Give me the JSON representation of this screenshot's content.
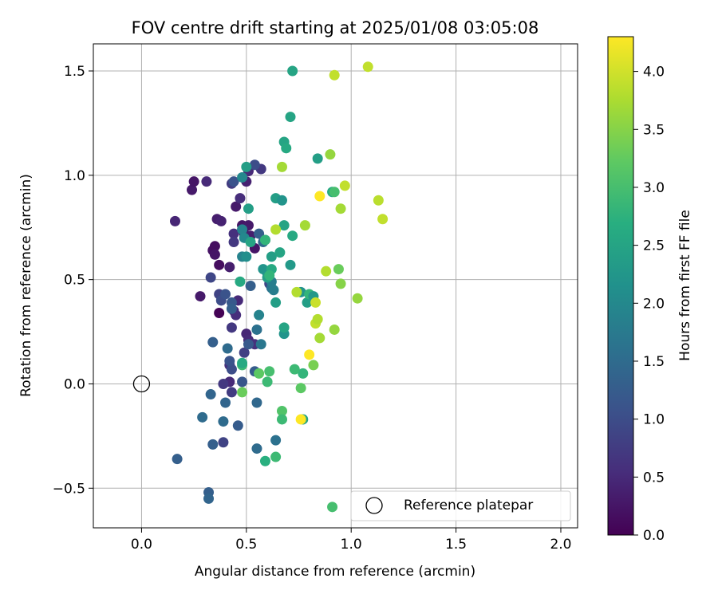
{
  "chart_data": {
    "type": "scatter",
    "title": "FOV centre drift starting at 2025/01/08 03:05:08",
    "xlabel": "Angular distance from reference (arcmin)",
    "ylabel": "Rotation from reference (arcmin)",
    "xlim": [
      -0.23,
      2.08
    ],
    "ylim": [
      -0.69,
      1.63
    ],
    "xticks": [
      0.0,
      0.5,
      1.0,
      1.5,
      2.0
    ],
    "xtick_labels": [
      "0.0",
      "0.5",
      "1.0",
      "1.5",
      "2.0"
    ],
    "yticks": [
      -0.5,
      0.0,
      0.5,
      1.0,
      1.5
    ],
    "ytick_labels": [
      "−0.5",
      "0.0",
      "0.5",
      "1.0",
      "1.5"
    ],
    "grid": true,
    "legend": {
      "position": "lower-right",
      "entries": [
        "Reference platepar"
      ]
    },
    "reference": {
      "x": 0.0,
      "y": 0.0,
      "label": "Reference platepar"
    },
    "colorbar": {
      "label": "Hours from first FF file",
      "min": 0.0,
      "max": 4.3,
      "colormap": "viridis",
      "ticks": [
        0.0,
        0.5,
        1.0,
        1.5,
        2.0,
        2.5,
        3.0,
        3.5,
        4.0
      ],
      "tick_labels": [
        "0.0",
        "0.5",
        "1.0",
        "1.5",
        "2.0",
        "2.5",
        "3.0",
        "3.5",
        "4.0"
      ]
    },
    "points": [
      {
        "x": 0.37,
        "y": 0.34,
        "h": 0.02
      },
      {
        "x": 0.37,
        "y": 0.57,
        "h": 0.15
      },
      {
        "x": 0.34,
        "y": 0.64,
        "h": 0.2
      },
      {
        "x": 0.35,
        "y": 0.66,
        "h": 0.15
      },
      {
        "x": 0.35,
        "y": 0.62,
        "h": 0.25
      },
      {
        "x": 0.28,
        "y": 0.42,
        "h": 0.3
      },
      {
        "x": 0.24,
        "y": 0.93,
        "h": 0.3
      },
      {
        "x": 0.25,
        "y": 0.97,
        "h": 0.25
      },
      {
        "x": 0.16,
        "y": 0.78,
        "h": 0.45
      },
      {
        "x": 0.31,
        "y": 0.97,
        "h": 0.5
      },
      {
        "x": 0.36,
        "y": 0.79,
        "h": 0.35
      },
      {
        "x": 0.38,
        "y": 0.78,
        "h": 0.4
      },
      {
        "x": 0.42,
        "y": 0.56,
        "h": 0.35
      },
      {
        "x": 0.45,
        "y": 0.85,
        "h": 0.3
      },
      {
        "x": 0.48,
        "y": 0.76,
        "h": 0.25
      },
      {
        "x": 0.49,
        "y": 0.72,
        "h": 0.2
      },
      {
        "x": 0.51,
        "y": 0.76,
        "h": 0.3
      },
      {
        "x": 0.52,
        "y": 0.71,
        "h": 0.35
      },
      {
        "x": 0.54,
        "y": 0.65,
        "h": 0.25
      },
      {
        "x": 0.5,
        "y": 0.97,
        "h": 0.4
      },
      {
        "x": 0.47,
        "y": 0.89,
        "h": 0.55
      },
      {
        "x": 0.43,
        "y": 0.96,
        "h": 0.75
      },
      {
        "x": 0.51,
        "y": 1.02,
        "h": 0.5
      },
      {
        "x": 0.57,
        "y": 1.03,
        "h": 0.7
      },
      {
        "x": 0.44,
        "y": 0.72,
        "h": 0.6
      },
      {
        "x": 0.44,
        "y": 0.68,
        "h": 0.7
      },
      {
        "x": 0.46,
        "y": 0.4,
        "h": 0.5
      },
      {
        "x": 0.44,
        "y": 0.35,
        "h": 0.45
      },
      {
        "x": 0.45,
        "y": 0.33,
        "h": 0.55
      },
      {
        "x": 0.43,
        "y": 0.27,
        "h": 0.7
      },
      {
        "x": 0.5,
        "y": 0.24,
        "h": 0.45
      },
      {
        "x": 0.51,
        "y": 0.21,
        "h": 0.5
      },
      {
        "x": 0.49,
        "y": 0.15,
        "h": 0.8
      },
      {
        "x": 0.54,
        "y": 0.19,
        "h": 0.6
      },
      {
        "x": 0.42,
        "y": 0.09,
        "h": 0.6
      },
      {
        "x": 0.42,
        "y": 0.01,
        "h": 0.5
      },
      {
        "x": 0.39,
        "y": 0.0,
        "h": 0.7
      },
      {
        "x": 0.43,
        "y": -0.04,
        "h": 0.75
      },
      {
        "x": 0.39,
        "y": -0.28,
        "h": 0.85
      },
      {
        "x": 0.43,
        "y": 0.07,
        "h": 1.0
      },
      {
        "x": 0.42,
        "y": 0.11,
        "h": 1.1
      },
      {
        "x": 0.48,
        "y": 0.01,
        "h": 1.15
      },
      {
        "x": 0.46,
        "y": -0.2,
        "h": 1.25
      },
      {
        "x": 0.4,
        "y": -0.09,
        "h": 1.4
      },
      {
        "x": 0.33,
        "y": 0.51,
        "h": 0.9
      },
      {
        "x": 0.37,
        "y": 0.43,
        "h": 0.85
      },
      {
        "x": 0.38,
        "y": 0.4,
        "h": 1.0
      },
      {
        "x": 0.4,
        "y": 0.43,
        "h": 1.1
      },
      {
        "x": 0.43,
        "y": 0.39,
        "h": 1.2
      },
      {
        "x": 0.43,
        "y": 0.36,
        "h": 1.3
      },
      {
        "x": 0.41,
        "y": 0.17,
        "h": 1.5
      },
      {
        "x": 0.34,
        "y": 0.2,
        "h": 1.3
      },
      {
        "x": 0.33,
        "y": -0.05,
        "h": 1.4
      },
      {
        "x": 0.39,
        "y": -0.18,
        "h": 1.5
      },
      {
        "x": 0.29,
        "y": -0.16,
        "h": 1.5
      },
      {
        "x": 0.34,
        "y": -0.29,
        "h": 1.3
      },
      {
        "x": 0.32,
        "y": -0.52,
        "h": 1.3
      },
      {
        "x": 0.32,
        "y": -0.55,
        "h": 1.4
      },
      {
        "x": 0.17,
        "y": -0.36,
        "h": 1.3
      },
      {
        "x": 0.55,
        "y": -0.31,
        "h": 1.5
      },
      {
        "x": 0.64,
        "y": -0.27,
        "h": 1.6
      },
      {
        "x": 0.55,
        "y": -0.09,
        "h": 1.45
      },
      {
        "x": 0.54,
        "y": 0.06,
        "h": 1.25
      },
      {
        "x": 0.52,
        "y": 0.47,
        "h": 1.3
      },
      {
        "x": 0.51,
        "y": 0.19,
        "h": 1.2
      },
      {
        "x": 0.55,
        "y": 0.26,
        "h": 1.6
      },
      {
        "x": 0.57,
        "y": 0.19,
        "h": 1.7
      },
      {
        "x": 0.56,
        "y": 0.33,
        "h": 1.9
      },
      {
        "x": 0.54,
        "y": 1.05,
        "h": 1.0
      },
      {
        "x": 0.44,
        "y": 0.97,
        "h": 1.1
      },
      {
        "x": 0.48,
        "y": 0.99,
        "h": 2.0
      },
      {
        "x": 0.5,
        "y": 1.04,
        "h": 2.4
      },
      {
        "x": 0.51,
        "y": 0.84,
        "h": 2.4
      },
      {
        "x": 0.48,
        "y": 0.74,
        "h": 1.9
      },
      {
        "x": 0.49,
        "y": 0.7,
        "h": 2.0
      },
      {
        "x": 0.56,
        "y": 0.72,
        "h": 1.3
      },
      {
        "x": 0.59,
        "y": 0.69,
        "h": 1.2
      },
      {
        "x": 0.58,
        "y": 0.68,
        "h": 1.5
      },
      {
        "x": 0.52,
        "y": 0.68,
        "h": 2.5
      },
      {
        "x": 0.48,
        "y": 0.61,
        "h": 1.9
      },
      {
        "x": 0.5,
        "y": 0.61,
        "h": 2.1
      },
      {
        "x": 0.61,
        "y": 0.48,
        "h": 0.9
      },
      {
        "x": 0.62,
        "y": 0.46,
        "h": 1.6
      },
      {
        "x": 0.62,
        "y": 0.49,
        "h": 1.8
      },
      {
        "x": 0.63,
        "y": 0.45,
        "h": 1.8
      },
      {
        "x": 0.6,
        "y": 0.53,
        "h": 2.0
      },
      {
        "x": 0.58,
        "y": 0.55,
        "h": 2.2
      },
      {
        "x": 0.6,
        "y": 0.51,
        "h": 2.4
      },
      {
        "x": 0.62,
        "y": 0.55,
        "h": 2.6
      },
      {
        "x": 0.61,
        "y": 0.52,
        "h": 2.8
      },
      {
        "x": 0.64,
        "y": 0.89,
        "h": 2.4
      },
      {
        "x": 0.67,
        "y": 0.88,
        "h": 2.2
      },
      {
        "x": 0.62,
        "y": 0.61,
        "h": 2.4
      },
      {
        "x": 0.66,
        "y": 0.63,
        "h": 2.5
      },
      {
        "x": 0.68,
        "y": 0.76,
        "h": 2.5
      },
      {
        "x": 0.72,
        "y": 0.71,
        "h": 2.6
      },
      {
        "x": 0.71,
        "y": 0.57,
        "h": 2.3
      },
      {
        "x": 0.59,
        "y": 0.69,
        "h": 2.8
      },
      {
        "x": 0.64,
        "y": 0.39,
        "h": 2.4
      },
      {
        "x": 0.68,
        "y": 0.24,
        "h": 2.2
      },
      {
        "x": 0.68,
        "y": 0.27,
        "h": 2.5
      },
      {
        "x": 0.47,
        "y": 0.49,
        "h": 2.6
      },
      {
        "x": 0.68,
        "y": 1.16,
        "h": 2.5
      },
      {
        "x": 0.69,
        "y": 1.13,
        "h": 2.6
      },
      {
        "x": 0.71,
        "y": 1.28,
        "h": 2.5
      },
      {
        "x": 0.72,
        "y": 1.5,
        "h": 2.5
      },
      {
        "x": 0.84,
        "y": 1.08,
        "h": 2.4
      },
      {
        "x": 0.91,
        "y": 0.92,
        "h": 2.6
      },
      {
        "x": 0.76,
        "y": 0.44,
        "h": 2.2
      },
      {
        "x": 0.79,
        "y": 0.39,
        "h": 2.4
      },
      {
        "x": 0.8,
        "y": 0.43,
        "h": 2.8
      },
      {
        "x": 0.82,
        "y": 0.42,
        "h": 2.3
      },
      {
        "x": 0.77,
        "y": 0.05,
        "h": 2.8
      },
      {
        "x": 0.73,
        "y": 0.07,
        "h": 2.9
      },
      {
        "x": 0.77,
        "y": -0.17,
        "h": 2.5
      },
      {
        "x": 0.76,
        "y": -0.02,
        "h": 3.2
      },
      {
        "x": 0.67,
        "y": -0.13,
        "h": 3.1
      },
      {
        "x": 0.67,
        "y": -0.17,
        "h": 2.9
      },
      {
        "x": 0.64,
        "y": -0.35,
        "h": 2.9
      },
      {
        "x": 0.59,
        "y": -0.37,
        "h": 2.7
      },
      {
        "x": 0.56,
        "y": 0.05,
        "h": 3.2
      },
      {
        "x": 0.61,
        "y": 0.06,
        "h": 3.0
      },
      {
        "x": 0.6,
        "y": 0.01,
        "h": 2.9
      },
      {
        "x": 0.48,
        "y": -0.04,
        "h": 3.3
      },
      {
        "x": 0.48,
        "y": 0.09,
        "h": 2.9
      },
      {
        "x": 0.48,
        "y": 0.1,
        "h": 2.6
      },
      {
        "x": 0.82,
        "y": 0.09,
        "h": 3.4
      },
      {
        "x": 0.91,
        "y": -0.59,
        "h": 3.0
      },
      {
        "x": 0.92,
        "y": 0.92,
        "h": 3.0
      },
      {
        "x": 0.94,
        "y": 0.55,
        "h": 3.3
      },
      {
        "x": 0.95,
        "y": 0.48,
        "h": 3.5
      },
      {
        "x": 0.92,
        "y": 0.26,
        "h": 3.6
      },
      {
        "x": 0.85,
        "y": 0.22,
        "h": 3.7
      },
      {
        "x": 1.03,
        "y": 0.41,
        "h": 3.6
      },
      {
        "x": 0.88,
        "y": 0.54,
        "h": 3.8
      },
      {
        "x": 0.9,
        "y": 1.1,
        "h": 3.6
      },
      {
        "x": 0.95,
        "y": 0.84,
        "h": 3.7
      },
      {
        "x": 0.97,
        "y": 0.95,
        "h": 3.9
      },
      {
        "x": 0.92,
        "y": 1.48,
        "h": 3.9
      },
      {
        "x": 1.08,
        "y": 1.52,
        "h": 3.9
      },
      {
        "x": 1.13,
        "y": 0.88,
        "h": 3.85
      },
      {
        "x": 1.15,
        "y": 0.79,
        "h": 3.9
      },
      {
        "x": 0.67,
        "y": 1.04,
        "h": 3.7
      },
      {
        "x": 0.64,
        "y": 0.74,
        "h": 3.8
      },
      {
        "x": 0.78,
        "y": 0.76,
        "h": 3.7
      },
      {
        "x": 0.74,
        "y": 0.44,
        "h": 3.8
      },
      {
        "x": 0.83,
        "y": 0.39,
        "h": 3.95
      },
      {
        "x": 0.83,
        "y": 0.29,
        "h": 3.9
      },
      {
        "x": 0.84,
        "y": 0.31,
        "h": 3.8
      },
      {
        "x": 0.8,
        "y": 0.14,
        "h": 4.3
      },
      {
        "x": 0.76,
        "y": -0.17,
        "h": 4.3
      },
      {
        "x": 0.85,
        "y": 0.9,
        "h": 4.3
      }
    ]
  }
}
